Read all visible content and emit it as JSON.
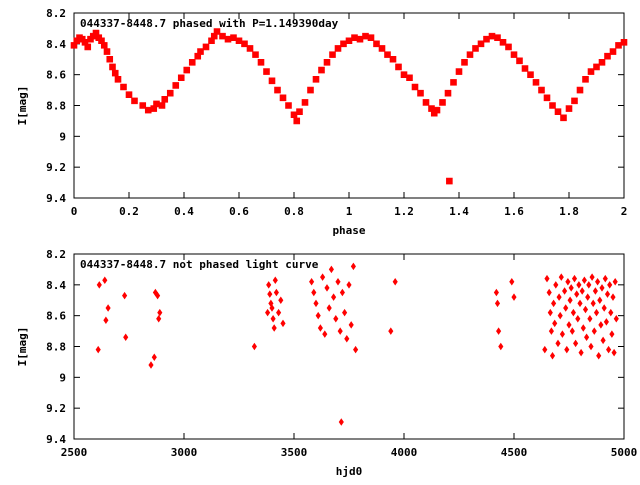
{
  "chart_data": [
    {
      "type": "scatter",
      "title": "044337-8448.7 phased with P=1.149390day",
      "xlabel": "phase",
      "ylabel": "I[mag]",
      "xlim": [
        0,
        2
      ],
      "ylim": [
        9.4,
        8.2
      ],
      "y_inverted": true,
      "xticks": [
        "0",
        "0.2",
        "0.4",
        "0.6",
        "0.8",
        "1",
        "1.2",
        "1.4",
        "1.6",
        "1.8",
        "2"
      ],
      "yticks": [
        "8.2",
        "8.4",
        "8.6",
        "8.8",
        "9",
        "9.2",
        "9.4"
      ],
      "marker_color": "#ff0000",
      "points": [
        [
          0.0,
          8.41
        ],
        [
          0.01,
          8.38
        ],
        [
          0.02,
          8.36
        ],
        [
          0.03,
          8.37
        ],
        [
          0.04,
          8.39
        ],
        [
          0.05,
          8.42
        ],
        [
          0.06,
          8.37
        ],
        [
          0.07,
          8.35
        ],
        [
          0.08,
          8.33
        ],
        [
          0.09,
          8.36
        ],
        [
          0.1,
          8.38
        ],
        [
          0.11,
          8.41
        ],
        [
          0.12,
          8.45
        ],
        [
          0.13,
          8.5
        ],
        [
          0.14,
          8.55
        ],
        [
          0.15,
          8.59
        ],
        [
          0.16,
          8.63
        ],
        [
          0.18,
          8.68
        ],
        [
          0.2,
          8.73
        ],
        [
          0.22,
          8.77
        ],
        [
          0.25,
          8.8
        ],
        [
          0.27,
          8.83
        ],
        [
          0.29,
          8.82
        ],
        [
          0.3,
          8.79
        ],
        [
          0.32,
          8.8
        ],
        [
          0.33,
          8.76
        ],
        [
          0.35,
          8.72
        ],
        [
          0.37,
          8.67
        ],
        [
          0.39,
          8.62
        ],
        [
          0.41,
          8.57
        ],
        [
          0.43,
          8.52
        ],
        [
          0.45,
          8.48
        ],
        [
          0.46,
          8.45
        ],
        [
          0.48,
          8.42
        ],
        [
          0.5,
          8.38
        ],
        [
          0.51,
          8.35
        ],
        [
          0.52,
          8.32
        ],
        [
          0.54,
          8.35
        ],
        [
          0.56,
          8.37
        ],
        [
          0.58,
          8.36
        ],
        [
          0.6,
          8.38
        ],
        [
          0.62,
          8.4
        ],
        [
          0.64,
          8.43
        ],
        [
          0.66,
          8.47
        ],
        [
          0.68,
          8.52
        ],
        [
          0.7,
          8.58
        ],
        [
          0.72,
          8.64
        ],
        [
          0.74,
          8.7
        ],
        [
          0.76,
          8.75
        ],
        [
          0.78,
          8.8
        ],
        [
          0.8,
          8.86
        ],
        [
          0.81,
          8.9
        ],
        [
          0.82,
          8.84
        ],
        [
          0.84,
          8.78
        ],
        [
          0.86,
          8.7
        ],
        [
          0.88,
          8.63
        ],
        [
          0.9,
          8.57
        ],
        [
          0.92,
          8.52
        ],
        [
          0.94,
          8.47
        ],
        [
          0.96,
          8.43
        ],
        [
          0.98,
          8.4
        ],
        [
          1.0,
          8.38
        ],
        [
          1.02,
          8.36
        ],
        [
          1.04,
          8.37
        ],
        [
          1.06,
          8.35
        ],
        [
          1.08,
          8.36
        ],
        [
          1.1,
          8.4
        ],
        [
          1.12,
          8.43
        ],
        [
          1.14,
          8.47
        ],
        [
          1.16,
          8.5
        ],
        [
          1.18,
          8.55
        ],
        [
          1.2,
          8.6
        ],
        [
          1.22,
          8.62
        ],
        [
          1.24,
          8.68
        ],
        [
          1.26,
          8.72
        ],
        [
          1.28,
          8.78
        ],
        [
          1.3,
          8.82
        ],
        [
          1.31,
          8.85
        ],
        [
          1.32,
          8.83
        ],
        [
          1.34,
          8.78
        ],
        [
          1.36,
          8.72
        ],
        [
          1.365,
          9.29
        ],
        [
          1.38,
          8.65
        ],
        [
          1.4,
          8.58
        ],
        [
          1.42,
          8.52
        ],
        [
          1.44,
          8.47
        ],
        [
          1.46,
          8.43
        ],
        [
          1.48,
          8.4
        ],
        [
          1.5,
          8.37
        ],
        [
          1.52,
          8.35
        ],
        [
          1.54,
          8.36
        ],
        [
          1.56,
          8.39
        ],
        [
          1.58,
          8.42
        ],
        [
          1.6,
          8.47
        ],
        [
          1.62,
          8.51
        ],
        [
          1.64,
          8.56
        ],
        [
          1.66,
          8.6
        ],
        [
          1.68,
          8.65
        ],
        [
          1.7,
          8.7
        ],
        [
          1.72,
          8.75
        ],
        [
          1.74,
          8.8
        ],
        [
          1.76,
          8.84
        ],
        [
          1.78,
          8.88
        ],
        [
          1.8,
          8.82
        ],
        [
          1.82,
          8.77
        ],
        [
          1.84,
          8.7
        ],
        [
          1.86,
          8.63
        ],
        [
          1.88,
          8.58
        ],
        [
          1.9,
          8.55
        ],
        [
          1.92,
          8.52
        ],
        [
          1.94,
          8.48
        ],
        [
          1.96,
          8.45
        ],
        [
          1.98,
          8.41
        ],
        [
          2.0,
          8.39
        ]
      ]
    },
    {
      "type": "scatter",
      "title": "044337-8448.7 not phased light curve",
      "xlabel": "hjd0",
      "ylabel": "I[mag]",
      "xlim": [
        2500,
        5000
      ],
      "ylim": [
        9.4,
        8.2
      ],
      "y_inverted": true,
      "xticks": [
        "2500",
        "3000",
        "3500",
        "4000",
        "4500",
        "5000"
      ],
      "yticks": [
        "8.2",
        "8.4",
        "8.6",
        "8.8",
        "9",
        "9.2",
        "9.4"
      ],
      "marker_color": "#ff0000",
      "points": [
        [
          2610,
          8.82
        ],
        [
          2615,
          8.4
        ],
        [
          2640,
          8.37
        ],
        [
          2645,
          8.63
        ],
        [
          2655,
          8.55
        ],
        [
          2730,
          8.47
        ],
        [
          2735,
          8.74
        ],
        [
          2850,
          8.92
        ],
        [
          2865,
          8.87
        ],
        [
          2870,
          8.45
        ],
        [
          2880,
          8.47
        ],
        [
          2885,
          8.62
        ],
        [
          2890,
          8.58
        ],
        [
          3320,
          8.8
        ],
        [
          3380,
          8.58
        ],
        [
          3385,
          8.4
        ],
        [
          3390,
          8.46
        ],
        [
          3395,
          8.52
        ],
        [
          3400,
          8.55
        ],
        [
          3405,
          8.62
        ],
        [
          3410,
          8.68
        ],
        [
          3415,
          8.37
        ],
        [
          3420,
          8.45
        ],
        [
          3430,
          8.58
        ],
        [
          3440,
          8.5
        ],
        [
          3450,
          8.65
        ],
        [
          3580,
          8.38
        ],
        [
          3590,
          8.45
        ],
        [
          3600,
          8.52
        ],
        [
          3610,
          8.6
        ],
        [
          3620,
          8.68
        ],
        [
          3630,
          8.35
        ],
        [
          3640,
          8.72
        ],
        [
          3650,
          8.42
        ],
        [
          3660,
          8.55
        ],
        [
          3670,
          8.3
        ],
        [
          3680,
          8.48
        ],
        [
          3690,
          8.62
        ],
        [
          3700,
          8.38
        ],
        [
          3710,
          8.7
        ],
        [
          3715,
          9.29
        ],
        [
          3720,
          8.45
        ],
        [
          3730,
          8.58
        ],
        [
          3740,
          8.75
        ],
        [
          3750,
          8.4
        ],
        [
          3760,
          8.66
        ],
        [
          3770,
          8.28
        ],
        [
          3780,
          8.82
        ],
        [
          3940,
          8.7
        ],
        [
          3960,
          8.38
        ],
        [
          4420,
          8.45
        ],
        [
          4425,
          8.52
        ],
        [
          4430,
          8.7
        ],
        [
          4440,
          8.8
        ],
        [
          4490,
          8.38
        ],
        [
          4500,
          8.48
        ],
        [
          4640,
          8.82
        ],
        [
          4650,
          8.36
        ],
        [
          4660,
          8.45
        ],
        [
          4665,
          8.58
        ],
        [
          4670,
          8.7
        ],
        [
          4675,
          8.86
        ],
        [
          4680,
          8.52
        ],
        [
          4685,
          8.65
        ],
        [
          4690,
          8.4
        ],
        [
          4700,
          8.78
        ],
        [
          4705,
          8.48
        ],
        [
          4710,
          8.6
        ],
        [
          4715,
          8.35
        ],
        [
          4720,
          8.72
        ],
        [
          4730,
          8.44
        ],
        [
          4735,
          8.55
        ],
        [
          4740,
          8.82
        ],
        [
          4745,
          8.38
        ],
        [
          4750,
          8.66
        ],
        [
          4755,
          8.5
        ],
        [
          4760,
          8.42
        ],
        [
          4765,
          8.7
        ],
        [
          4770,
          8.58
        ],
        [
          4775,
          8.36
        ],
        [
          4780,
          8.78
        ],
        [
          4785,
          8.46
        ],
        [
          4790,
          8.62
        ],
        [
          4795,
          8.4
        ],
        [
          4800,
          8.52
        ],
        [
          4805,
          8.84
        ],
        [
          4810,
          8.44
        ],
        [
          4815,
          8.68
        ],
        [
          4820,
          8.37
        ],
        [
          4825,
          8.56
        ],
        [
          4830,
          8.74
        ],
        [
          4835,
          8.48
        ],
        [
          4840,
          8.4
        ],
        [
          4845,
          8.62
        ],
        [
          4850,
          8.8
        ],
        [
          4855,
          8.35
        ],
        [
          4860,
          8.52
        ],
        [
          4865,
          8.7
        ],
        [
          4870,
          8.44
        ],
        [
          4875,
          8.58
        ],
        [
          4880,
          8.38
        ],
        [
          4885,
          8.86
        ],
        [
          4890,
          8.5
        ],
        [
          4895,
          8.66
        ],
        [
          4900,
          8.42
        ],
        [
          4905,
          8.76
        ],
        [
          4910,
          8.55
        ],
        [
          4915,
          8.36
        ],
        [
          4920,
          8.64
        ],
        [
          4925,
          8.46
        ],
        [
          4930,
          8.82
        ],
        [
          4935,
          8.4
        ],
        [
          4940,
          8.58
        ],
        [
          4945,
          8.72
        ],
        [
          4950,
          8.48
        ],
        [
          4955,
          8.84
        ],
        [
          4960,
          8.38
        ],
        [
          4965,
          8.62
        ]
      ]
    }
  ]
}
